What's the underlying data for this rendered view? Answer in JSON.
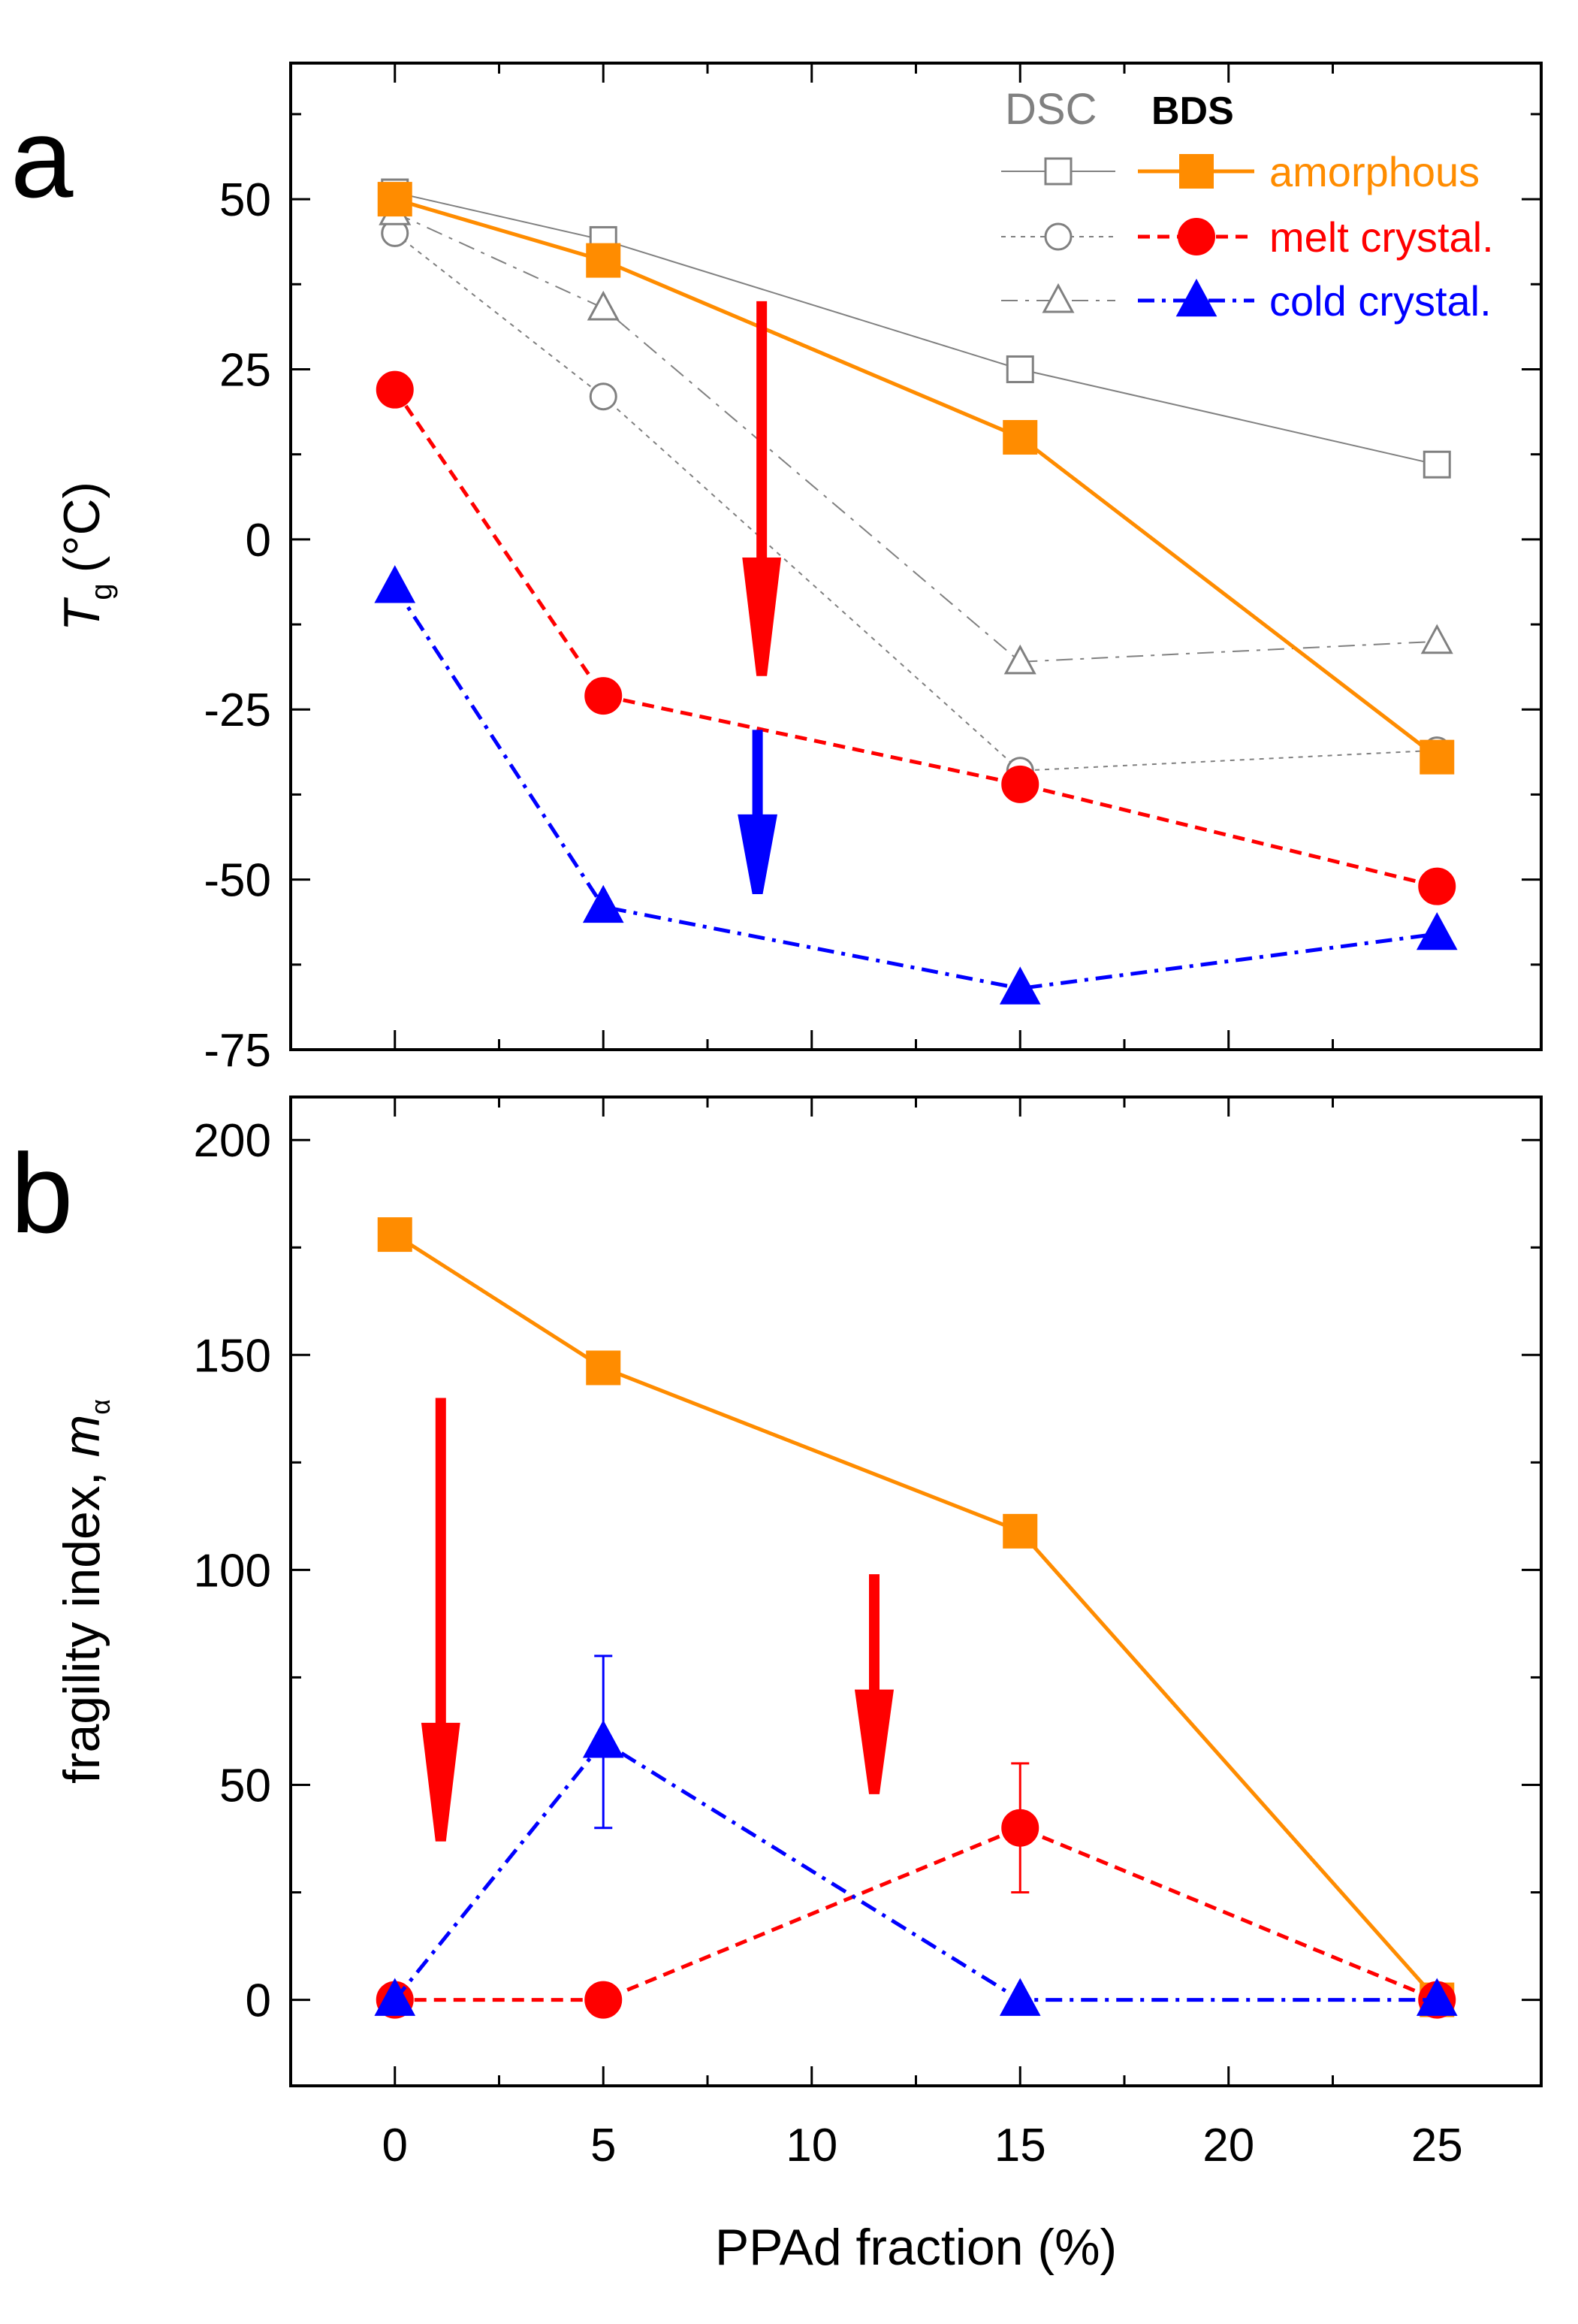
{
  "chart_data": [
    {
      "panel_label": "a",
      "type": "line",
      "ylabel_main": "T",
      "ylabel_sub": "g",
      "ylabel_unit": "(°C)",
      "ylim": [
        -75,
        70
      ],
      "yticks": [
        -75,
        -50,
        -25,
        0,
        25,
        50
      ],
      "xlim": [
        -2.5,
        27.5
      ],
      "legend": {
        "group_dsc": "DSC",
        "group_bds": "BDS",
        "placement": "top-right"
      },
      "series": [
        {
          "name": "amorphous",
          "method": "DSC",
          "color": "#808080",
          "marker": "square-open",
          "line": "solid",
          "x": [
            0,
            5,
            15,
            25
          ],
          "y": [
            51,
            44,
            25,
            11
          ]
        },
        {
          "name": "melt crystal.",
          "method": "DSC",
          "color": "#808080",
          "marker": "circle-open",
          "line": "dotted",
          "x": [
            0,
            5,
            15,
            25
          ],
          "y": [
            45,
            21,
            -34,
            -31
          ]
        },
        {
          "name": "cold crystal.",
          "method": "DSC",
          "color": "#808080",
          "marker": "triangle-open",
          "line": "dashdot",
          "x": [
            0,
            5,
            15,
            25
          ],
          "y": [
            48,
            34,
            -18,
            -15
          ]
        },
        {
          "name": "amorphous",
          "method": "BDS",
          "color": "#ff8c00",
          "marker": "square",
          "line": "solid",
          "x": [
            0,
            5,
            15,
            25
          ],
          "y": [
            50,
            41,
            15,
            -32
          ]
        },
        {
          "name": "melt crystal.",
          "method": "BDS",
          "color": "#ff0000",
          "marker": "circle",
          "line": "dashed",
          "x": [
            0,
            5,
            15,
            25
          ],
          "y": [
            22,
            -23,
            -36,
            -51
          ]
        },
        {
          "name": "cold crystal.",
          "method": "BDS",
          "color": "#0000ff",
          "marker": "triangle",
          "line": "dashdot",
          "x": [
            0,
            5,
            15,
            25
          ],
          "y": [
            -7,
            -54,
            -66,
            -58
          ]
        }
      ],
      "annotations": [
        {
          "type": "arrow",
          "color": "#ff0000",
          "x": 8.8,
          "y_from": 35,
          "y_to": -20
        },
        {
          "type": "arrow",
          "color": "#0000ff",
          "x": 8.7,
          "y_from": -28,
          "y_to": -52
        }
      ]
    },
    {
      "panel_label": "b",
      "type": "line",
      "ylabel_main": "fragility index, ",
      "ylabel_var": "m",
      "ylabel_sub": "α",
      "xlabel": "PPAd fraction (%)",
      "ylim": [
        -20,
        210
      ],
      "yticks": [
        0,
        50,
        100,
        150,
        200
      ],
      "xlim": [
        -2.5,
        27.5
      ],
      "xticks": [
        0,
        5,
        10,
        15,
        20,
        25
      ],
      "series": [
        {
          "name": "amorphous",
          "method": "BDS",
          "color": "#ff8c00",
          "marker": "square",
          "line": "solid",
          "x": [
            0,
            5,
            15,
            25
          ],
          "y": [
            178,
            147,
            109,
            0
          ]
        },
        {
          "name": "melt crystal.",
          "method": "BDS",
          "color": "#ff0000",
          "marker": "circle",
          "line": "dashed",
          "x": [
            0,
            5,
            15,
            25
          ],
          "y": [
            0,
            0,
            40,
            0
          ],
          "error": [
            0,
            0,
            15,
            0
          ]
        },
        {
          "name": "cold crystal.",
          "method": "BDS",
          "color": "#0000ff",
          "marker": "triangle",
          "line": "dashdot",
          "x": [
            0,
            5,
            15,
            25
          ],
          "y": [
            0,
            60,
            0,
            0
          ],
          "error": [
            0,
            20,
            0,
            0
          ]
        }
      ],
      "annotations": [
        {
          "type": "arrow",
          "color": "#ff0000",
          "x": 1.1,
          "y_from": 140,
          "y_to": 37
        },
        {
          "type": "arrow",
          "color": "#ff0000",
          "x": 11.5,
          "y_from": 99,
          "y_to": 48
        }
      ]
    }
  ]
}
